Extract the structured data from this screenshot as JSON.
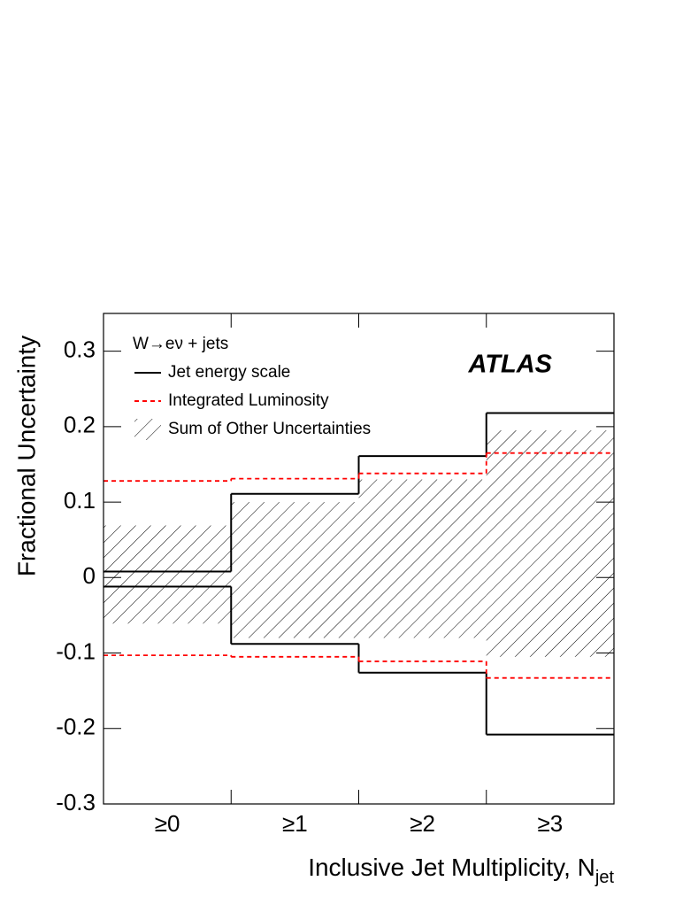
{
  "chart_data": {
    "type": "step-band",
    "header": "W→eν + jets",
    "annotation": "ATLAS",
    "xlabel": "Inclusive Jet Multiplicity, N",
    "xlabel_subscript": "jet",
    "ylabel": "Fractional Uncertainty",
    "categories": [
      "≥0",
      "≥1",
      "≥2",
      "≥3"
    ],
    "ylim": [
      -0.3,
      0.35
    ],
    "yticks": [
      -0.3,
      -0.2,
      -0.1,
      0,
      0.1,
      0.2,
      0.3
    ],
    "series": [
      {
        "name": "Jet energy scale",
        "color": "#000000",
        "style": "solid",
        "up": [
          0.008,
          0.111,
          0.161,
          0.218
        ],
        "down": [
          -0.012,
          -0.088,
          -0.126,
          -0.208
        ]
      },
      {
        "name": "Integrated Luminosity",
        "color": "#ff0000",
        "style": "dashed",
        "up": [
          0.128,
          0.131,
          0.138,
          0.165
        ],
        "down": [
          -0.103,
          -0.105,
          -0.111,
          -0.133
        ]
      },
      {
        "name": "Sum of Other Uncertainties",
        "color": "#000000",
        "style": "hatch",
        "up": [
          0.069,
          0.1,
          0.13,
          0.195
        ],
        "down": [
          -0.061,
          -0.08,
          -0.08,
          -0.105
        ]
      }
    ]
  }
}
